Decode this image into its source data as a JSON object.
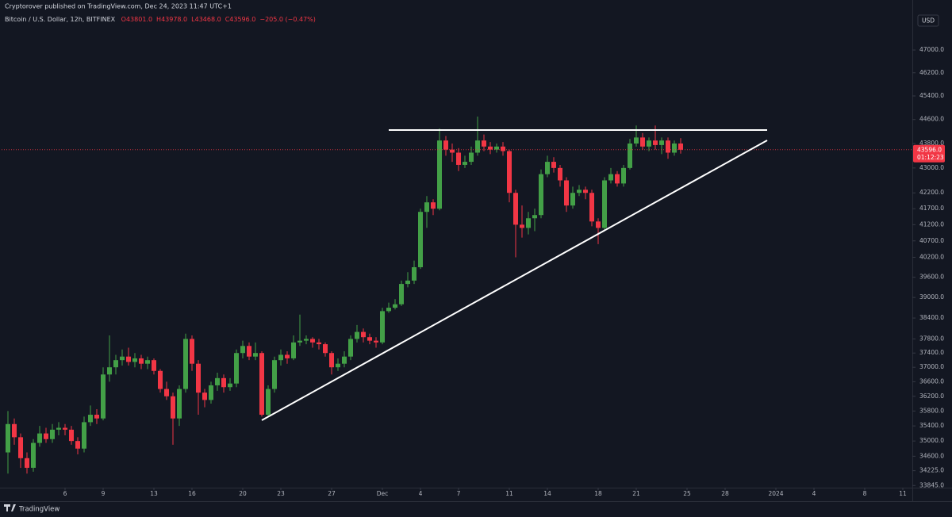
{
  "chart_data": {
    "type": "candlestick",
    "header": "Cryptorover published on TradingView.com, Dec 24, 2023 11:47 UTC+1",
    "symbol": "Bitcoin / U.S. Dollar, 12h, BITFINEX",
    "ohlc_text": [
      "O43801.0",
      "H43978.0",
      "L43468.0",
      "C43596.0",
      "−205.0 (−0.47%)"
    ],
    "currency": "USD",
    "price_tag": {
      "price": "43596.0",
      "countdown": "01:12:23"
    },
    "footer": "TradingView",
    "log_scale": true,
    "grid": false,
    "up_color": "#43a047",
    "down_color": "#f23645",
    "xlim": [
      "2023-11-01T00:00",
      "2024-01-11T18:00"
    ],
    "ylim": [
      33790,
      48370
    ],
    "yticks": [
      {
        "value": 33845,
        "label": "33845.0"
      },
      {
        "value": 34225,
        "label": "34225.0"
      },
      {
        "value": 34600,
        "label": "34600.0"
      },
      {
        "value": 35000,
        "label": "35000.0"
      },
      {
        "value": 35400,
        "label": "35400.0"
      },
      {
        "value": 35800,
        "label": "35800.0"
      },
      {
        "value": 36200,
        "label": "36200.0"
      },
      {
        "value": 36600,
        "label": "36600.0"
      },
      {
        "value": 37000,
        "label": "37000.0"
      },
      {
        "value": 37400,
        "label": "37400.0"
      },
      {
        "value": 37800,
        "label": "37800.0"
      },
      {
        "value": 38400,
        "label": "38400.0"
      },
      {
        "value": 39000,
        "label": "39000.0"
      },
      {
        "value": 39600,
        "label": "39600.0"
      },
      {
        "value": 40200,
        "label": "40200.0"
      },
      {
        "value": 40700,
        "label": "40700.0"
      },
      {
        "value": 41200,
        "label": "41200.0"
      },
      {
        "value": 41700,
        "label": "41700.0"
      },
      {
        "value": 42200,
        "label": "42200.0"
      },
      {
        "value": 43000,
        "label": "43000.0"
      },
      {
        "value": 43800,
        "label": "43800.0"
      },
      {
        "value": 44600,
        "label": "44600.0"
      },
      {
        "value": 45400,
        "label": "45400.0"
      },
      {
        "value": 46200,
        "label": "46200.0"
      },
      {
        "value": 47000,
        "label": "47000.0"
      }
    ],
    "xticks": [
      {
        "value": "2023-11-06T00:00",
        "label": "6"
      },
      {
        "value": "2023-11-09T00:00",
        "label": "9"
      },
      {
        "value": "2023-11-13T00:00",
        "label": "13"
      },
      {
        "value": "2023-11-16T00:00",
        "label": "16"
      },
      {
        "value": "2023-11-20T00:00",
        "label": "20"
      },
      {
        "value": "2023-11-23T00:00",
        "label": "23"
      },
      {
        "value": "2023-11-27T00:00",
        "label": "27"
      },
      {
        "value": "2023-12-01T00:00",
        "label": "Dec"
      },
      {
        "value": "2023-12-04T00:00",
        "label": "4"
      },
      {
        "value": "2023-12-07T00:00",
        "label": "7"
      },
      {
        "value": "2023-12-11T00:00",
        "label": "11"
      },
      {
        "value": "2023-12-14T00:00",
        "label": "14"
      },
      {
        "value": "2023-12-18T00:00",
        "label": "18"
      },
      {
        "value": "2023-12-21T00:00",
        "label": "21"
      },
      {
        "value": "2023-12-25T00:00",
        "label": "25"
      },
      {
        "value": "2023-12-28T00:00",
        "label": "28"
      },
      {
        "value": "2024-01-01T00:00",
        "label": "2024"
      },
      {
        "value": "2024-01-04T00:00",
        "label": "4"
      },
      {
        "value": "2024-01-08T00:00",
        "label": "8"
      },
      {
        "value": "2024-01-11T00:00",
        "label": "11"
      }
    ],
    "x": [
      "2023-11-01T12:00",
      "2023-11-02T00:00",
      "2023-11-02T12:00",
      "2023-11-03T00:00",
      "2023-11-03T12:00",
      "2023-11-04T00:00",
      "2023-11-04T12:00",
      "2023-11-05T00:00",
      "2023-11-05T12:00",
      "2023-11-06T00:00",
      "2023-11-06T12:00",
      "2023-11-07T00:00",
      "2023-11-07T12:00",
      "2023-11-08T00:00",
      "2023-11-08T12:00",
      "2023-11-09T00:00",
      "2023-11-09T12:00",
      "2023-11-10T00:00",
      "2023-11-10T12:00",
      "2023-11-11T00:00",
      "2023-11-11T12:00",
      "2023-11-12T00:00",
      "2023-11-12T12:00",
      "2023-11-13T00:00",
      "2023-11-13T12:00",
      "2023-11-14T00:00",
      "2023-11-14T12:00",
      "2023-11-15T00:00",
      "2023-11-15T12:00",
      "2023-11-16T00:00",
      "2023-11-16T12:00",
      "2023-11-17T00:00",
      "2023-11-17T12:00",
      "2023-11-18T00:00",
      "2023-11-18T12:00",
      "2023-11-19T00:00",
      "2023-11-19T12:00",
      "2023-11-20T00:00",
      "2023-11-20T12:00",
      "2023-11-21T00:00",
      "2023-11-21T12:00",
      "2023-11-22T00:00",
      "2023-11-22T12:00",
      "2023-11-23T00:00",
      "2023-11-23T12:00",
      "2023-11-24T00:00",
      "2023-11-24T12:00",
      "2023-11-25T00:00",
      "2023-11-25T12:00",
      "2023-11-26T00:00",
      "2023-11-26T12:00",
      "2023-11-27T00:00",
      "2023-11-27T12:00",
      "2023-11-28T00:00",
      "2023-11-28T12:00",
      "2023-11-29T00:00",
      "2023-11-29T12:00",
      "2023-11-30T00:00",
      "2023-11-30T12:00",
      "2023-12-01T00:00",
      "2023-12-01T12:00",
      "2023-12-02T00:00",
      "2023-12-02T12:00",
      "2023-12-03T00:00",
      "2023-12-03T12:00",
      "2023-12-04T00:00",
      "2023-12-04T12:00",
      "2023-12-05T00:00",
      "2023-12-05T12:00",
      "2023-12-06T00:00",
      "2023-12-06T12:00",
      "2023-12-07T00:00",
      "2023-12-07T12:00",
      "2023-12-08T00:00",
      "2023-12-08T12:00",
      "2023-12-09T00:00",
      "2023-12-09T12:00",
      "2023-12-10T00:00",
      "2023-12-10T12:00",
      "2023-12-11T00:00",
      "2023-12-11T12:00",
      "2023-12-12T00:00",
      "2023-12-12T12:00",
      "2023-12-13T00:00",
      "2023-12-13T12:00",
      "2023-12-14T00:00",
      "2023-12-14T12:00",
      "2023-12-15T00:00",
      "2023-12-15T12:00",
      "2023-12-16T00:00",
      "2023-12-16T12:00",
      "2023-12-17T00:00",
      "2023-12-17T12:00",
      "2023-12-18T00:00",
      "2023-12-18T12:00",
      "2023-12-19T00:00",
      "2023-12-19T12:00",
      "2023-12-20T00:00",
      "2023-12-20T12:00",
      "2023-12-21T00:00",
      "2023-12-21T12:00",
      "2023-12-22T00:00",
      "2023-12-22T12:00",
      "2023-12-23T00:00",
      "2023-12-23T12:00",
      "2023-12-24T00:00",
      "2023-12-24T12:00"
    ],
    "open": [
      34700,
      35450,
      35100,
      34550,
      34300,
      34950,
      35200,
      35050,
      35300,
      35350,
      35300,
      35000,
      34800,
      35500,
      35700,
      35600,
      36800,
      37000,
      37200,
      37300,
      37150,
      37250,
      37100,
      37200,
      36900,
      36400,
      36200,
      35600,
      36400,
      37800,
      37100,
      36300,
      36100,
      36500,
      36700,
      36450,
      36550,
      37400,
      37600,
      37300,
      37400,
      35700,
      36400,
      37200,
      37350,
      37250,
      37700,
      37750,
      37800,
      37700,
      37650,
      37400,
      37000,
      37100,
      37300,
      37800,
      38000,
      37850,
      37750,
      37700,
      38600,
      38700,
      38800,
      39400,
      39500,
      39900,
      41600,
      41900,
      41700,
      43900,
      43600,
      43500,
      43100,
      43200,
      43500,
      43900,
      43700,
      43600,
      43700,
      43550,
      42200,
      41200,
      41100,
      41400,
      41500,
      42800,
      43200,
      43000,
      42600,
      41800,
      42200,
      42300,
      42200,
      41300,
      41100,
      42600,
      42800,
      42500,
      43000,
      43800,
      44000,
      43700,
      43900,
      43750,
      43900,
      43500,
      43801
    ],
    "high": [
      35800,
      35600,
      35200,
      34700,
      35050,
      35400,
      35350,
      35450,
      35500,
      35450,
      35400,
      35100,
      35650,
      35950,
      35850,
      37000,
      37900,
      37350,
      37500,
      37550,
      37400,
      37350,
      37300,
      37250,
      36950,
      36600,
      36300,
      36500,
      37950,
      37900,
      37200,
      36400,
      36600,
      36850,
      36800,
      36700,
      37500,
      37750,
      37700,
      37700,
      37450,
      36500,
      37300,
      37500,
      37450,
      37900,
      38500,
      37900,
      37850,
      37800,
      37700,
      37450,
      37250,
      37450,
      37900,
      38200,
      38100,
      37950,
      37850,
      38700,
      38850,
      38950,
      39500,
      39750,
      40100,
      41700,
      42100,
      42000,
      44300,
      44050,
      43800,
      43650,
      43400,
      43700,
      44700,
      44100,
      43850,
      43800,
      43850,
      43600,
      42300,
      41800,
      41600,
      41700,
      42950,
      43400,
      43350,
      43100,
      42700,
      42400,
      42450,
      42400,
      42300,
      41400,
      42700,
      43000,
      42900,
      43100,
      43950,
      44400,
      44150,
      44000,
      44400,
      44000,
      44000,
      43900,
      43978
    ],
    "low": [
      34150,
      34900,
      34300,
      34150,
      34200,
      34850,
      34950,
      34950,
      35150,
      35150,
      34900,
      34650,
      34700,
      35400,
      35450,
      35550,
      36600,
      36800,
      37050,
      37050,
      37000,
      36950,
      36950,
      36800,
      36300,
      36100,
      34900,
      35400,
      36300,
      36900,
      35700,
      35900,
      36000,
      36350,
      36300,
      36350,
      36450,
      37250,
      37200,
      37200,
      35650,
      35650,
      36300,
      37050,
      37100,
      37200,
      37600,
      37650,
      37550,
      37500,
      37300,
      36800,
      36900,
      37000,
      37200,
      37700,
      37700,
      37650,
      37550,
      37650,
      38550,
      38650,
      38750,
      39300,
      39400,
      39850,
      41100,
      41500,
      41650,
      43400,
      43200,
      42900,
      43000,
      43100,
      43400,
      43550,
      43450,
      43500,
      43400,
      41900,
      40200,
      40800,
      40900,
      41000,
      41400,
      42700,
      42850,
      42400,
      41600,
      41700,
      42100,
      42000,
      41150,
      40600,
      41000,
      42500,
      42400,
      42400,
      42950,
      43700,
      43600,
      43550,
      43600,
      43450,
      43300,
      43400,
      43468
    ],
    "close": [
      35450,
      35100,
      34550,
      34300,
      34950,
      35200,
      35050,
      35300,
      35350,
      35300,
      35000,
      34800,
      35500,
      35700,
      35600,
      36800,
      37000,
      37200,
      37300,
      37150,
      37250,
      37100,
      37200,
      36900,
      36400,
      36200,
      35600,
      36400,
      37800,
      37100,
      36300,
      36100,
      36500,
      36700,
      36450,
      36550,
      37400,
      37600,
      37300,
      37400,
      35700,
      36400,
      37200,
      37350,
      37250,
      37700,
      37750,
      37800,
      37700,
      37650,
      37400,
      37000,
      37100,
      37300,
      37800,
      38000,
      37850,
      37750,
      37700,
      38600,
      38700,
      38800,
      39400,
      39500,
      39900,
      41600,
      41900,
      41700,
      43900,
      43600,
      43500,
      43100,
      43200,
      43500,
      43900,
      43700,
      43600,
      43700,
      43550,
      42200,
      41200,
      41100,
      41400,
      41500,
      42800,
      43200,
      43000,
      42600,
      41800,
      42200,
      42300,
      42200,
      41300,
      41100,
      42600,
      42800,
      42500,
      43000,
      43800,
      44000,
      43700,
      43900,
      43750,
      43900,
      43500,
      43801,
      43596
    ]
  }
}
